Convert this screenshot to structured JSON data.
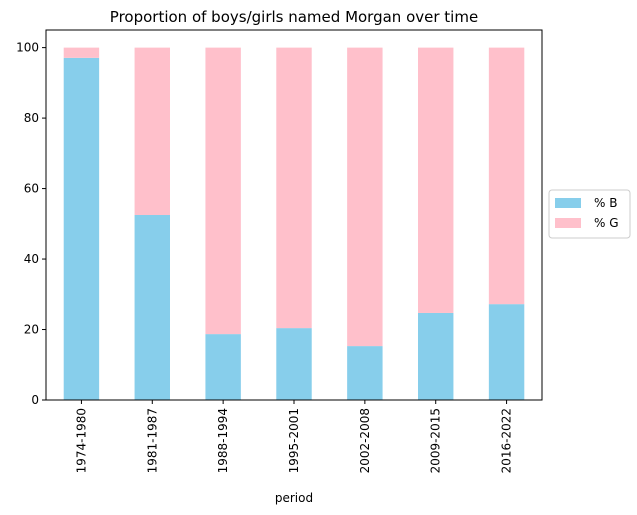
{
  "chart_data": {
    "type": "bar",
    "stacked": true,
    "title": "Proportion of boys/girls named Morgan over time",
    "xlabel": "period",
    "ylabel": "",
    "categories": [
      "1974-1980",
      "1981-1987",
      "1988-1994",
      "1995-2001",
      "2002-2008",
      "2009-2015",
      "2016-2022"
    ],
    "series": [
      {
        "name": "% B",
        "color": "#87ceeb",
        "values": [
          97.1,
          52.5,
          18.7,
          20.4,
          15.3,
          24.7,
          27.2
        ]
      },
      {
        "name": "% G",
        "color": "#ffc0cb",
        "values": [
          2.9,
          47.5,
          81.3,
          79.6,
          84.7,
          75.3,
          72.8
        ]
      }
    ],
    "ylim": [
      0,
      105
    ],
    "yticks": [
      0,
      20,
      40,
      60,
      80,
      100
    ],
    "grid": false,
    "legend_position": "center-right-outside"
  }
}
